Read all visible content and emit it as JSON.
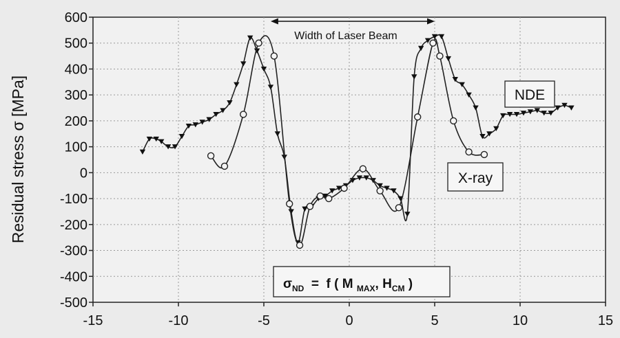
{
  "chart_data": {
    "type": "line",
    "ylabel": "Residual stress σ  [MPa]",
    "xlim": [
      -15,
      15
    ],
    "ylim": [
      -500,
      600
    ],
    "xticks": [
      -15,
      -10,
      -5,
      0,
      5,
      10,
      15
    ],
    "yticks": [
      600,
      500,
      400,
      300,
      200,
      100,
      0,
      -100,
      -200,
      -300,
      -400,
      -500
    ],
    "grid": true,
    "series": [
      {
        "name": "NDE",
        "marker": "triangle-down",
        "x": [
          -12.1,
          -11.7,
          -11.3,
          -11.0,
          -10.6,
          -10.2,
          -9.8,
          -9.4,
          -9.0,
          -8.6,
          -8.2,
          -7.8,
          -7.4,
          -7.0,
          -6.6,
          -6.2,
          -5.8,
          -5.4,
          -5.0,
          -4.6,
          -4.2,
          -3.8,
          -3.4,
          -3.0,
          -2.6,
          -2.2,
          -1.8,
          -1.4,
          -1.0,
          -0.6,
          -0.2,
          0.2,
          0.6,
          1.0,
          1.4,
          1.8,
          2.2,
          2.6,
          3.0,
          3.4,
          3.8,
          4.2,
          4.6,
          5.0,
          5.4,
          5.8,
          6.2,
          6.6,
          7.0,
          7.4,
          7.8,
          8.2,
          8.6,
          9.0,
          9.4,
          9.8,
          10.2,
          10.6,
          11.0,
          11.4,
          11.8,
          12.2,
          12.6,
          13.0
        ],
        "y": [
          80,
          130,
          130,
          120,
          100,
          100,
          140,
          180,
          185,
          195,
          205,
          225,
          240,
          270,
          340,
          420,
          520,
          470,
          400,
          330,
          150,
          60,
          -150,
          -270,
          -140,
          -130,
          -100,
          -90,
          -70,
          -60,
          -50,
          -30,
          -20,
          -20,
          -30,
          -50,
          -60,
          -70,
          -100,
          -160,
          370,
          480,
          510,
          525,
          525,
          440,
          360,
          340,
          300,
          250,
          140,
          150,
          170,
          220,
          225,
          225,
          230,
          235,
          240,
          230,
          230,
          250,
          260,
          250
        ]
      },
      {
        "name": "X-ray",
        "marker": "circle",
        "x": [
          -8.1,
          -7.3,
          -6.2,
          -5.3,
          -4.4,
          -3.5,
          -2.9,
          -2.3,
          -1.7,
          -1.2,
          -0.3,
          0.8,
          1.8,
          2.9,
          4.0,
          4.9,
          5.3,
          6.1,
          7.0,
          7.9
        ],
        "y": [
          65,
          25,
          225,
          500,
          450,
          -120,
          -280,
          -130,
          -90,
          -100,
          -60,
          15,
          -70,
          -135,
          215,
          500,
          450,
          200,
          80,
          70
        ]
      }
    ],
    "annotations": {
      "beam_label": "Width of Laser Beam",
      "beam_range": [
        -4.6,
        5.0
      ],
      "nde_label": "NDE",
      "xray_label": "X-ray",
      "formula": {
        "sigma": "σ",
        "sigma_sub": "ND",
        "mid": "=  f ( M",
        "max_sub": "MAX",
        "comma": ", H",
        "cm_sub": "CM",
        "close": " )"
      }
    }
  }
}
